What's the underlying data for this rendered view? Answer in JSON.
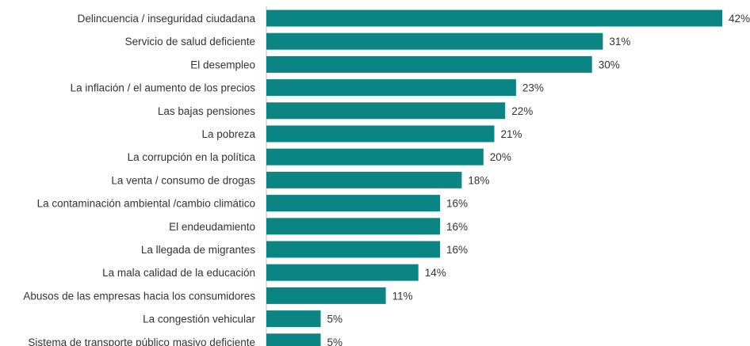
{
  "chart_data": {
    "type": "bar",
    "orientation": "horizontal",
    "title": "",
    "xlabel": "",
    "ylabel": "",
    "grid": false,
    "legend": "none",
    "bar_color": "#0b8583",
    "value_suffix": "%",
    "xlim": [
      0,
      42
    ],
    "categories": [
      "Delincuencia / inseguridad ciudadana",
      "Servicio de salud deficiente",
      "El desempleo",
      "La inflación / el aumento de los precios",
      "Las bajas pensiones",
      "La pobreza",
      "La corrupción en la política",
      "La venta / consumo de drogas",
      "La contaminación ambiental /cambio climático",
      "El endeudamiento",
      "La llegada de migrantes",
      "La mala calidad de la educación",
      "Abusos de las empresas hacia los consumidores",
      "La congestión vehicular",
      "Sistema de transporte público masivo deficiente"
    ],
    "values": [
      42,
      31,
      30,
      23,
      22,
      21,
      20,
      18,
      16,
      16,
      16,
      14,
      11,
      5,
      5
    ],
    "value_labels": [
      "42%",
      "31%",
      "30%",
      "23%",
      "22%",
      "21%",
      "20%",
      "18%",
      "16%",
      "16%",
      "16%",
      "14%",
      "11%",
      "5%",
      "5%"
    ]
  }
}
